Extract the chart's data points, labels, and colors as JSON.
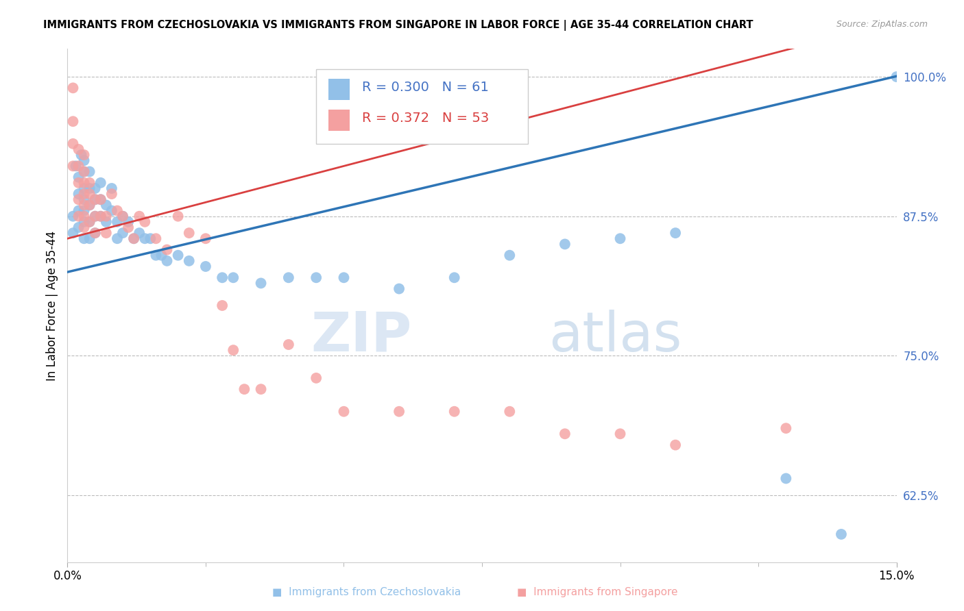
{
  "title": "IMMIGRANTS FROM CZECHOSLOVAKIA VS IMMIGRANTS FROM SINGAPORE IN LABOR FORCE | AGE 35-44 CORRELATION CHART",
  "source": "Source: ZipAtlas.com",
  "ylabel": "In Labor Force | Age 35-44",
  "yticks": [
    0.625,
    0.75,
    0.875,
    1.0
  ],
  "ytick_labels": [
    "62.5%",
    "75.0%",
    "87.5%",
    "100.0%"
  ],
  "xmin": 0.0,
  "xmax": 0.15,
  "ymin": 0.565,
  "ymax": 1.025,
  "blue_color": "#92C0E8",
  "pink_color": "#F4A0A0",
  "blue_line_color": "#2E75B6",
  "pink_line_color": "#D94040",
  "legend_blue_r": "R = 0.300",
  "legend_blue_n": "N = 61",
  "legend_pink_r": "R = 0.372",
  "legend_pink_n": "N = 53",
  "watermark_zip": "ZIP",
  "watermark_atlas": "atlas",
  "blue_intercept": 0.825,
  "blue_slope": 1.17,
  "pink_intercept": 0.855,
  "pink_slope": 1.3,
  "blue_x": [
    0.001,
    0.001,
    0.0015,
    0.002,
    0.002,
    0.002,
    0.002,
    0.0025,
    0.003,
    0.003,
    0.003,
    0.003,
    0.003,
    0.003,
    0.003,
    0.004,
    0.004,
    0.004,
    0.004,
    0.004,
    0.005,
    0.005,
    0.005,
    0.005,
    0.006,
    0.006,
    0.006,
    0.007,
    0.007,
    0.008,
    0.008,
    0.009,
    0.009,
    0.01,
    0.01,
    0.011,
    0.012,
    0.013,
    0.014,
    0.015,
    0.016,
    0.017,
    0.018,
    0.02,
    0.022,
    0.025,
    0.028,
    0.03,
    0.035,
    0.04,
    0.045,
    0.05,
    0.06,
    0.07,
    0.08,
    0.09,
    0.1,
    0.11,
    0.13,
    0.14,
    0.15
  ],
  "blue_y": [
    0.875,
    0.86,
    0.92,
    0.91,
    0.895,
    0.88,
    0.865,
    0.93,
    0.925,
    0.915,
    0.9,
    0.89,
    0.88,
    0.87,
    0.855,
    0.915,
    0.9,
    0.885,
    0.87,
    0.855,
    0.9,
    0.89,
    0.875,
    0.86,
    0.905,
    0.89,
    0.875,
    0.885,
    0.87,
    0.9,
    0.88,
    0.87,
    0.855,
    0.875,
    0.86,
    0.87,
    0.855,
    0.86,
    0.855,
    0.855,
    0.84,
    0.84,
    0.835,
    0.84,
    0.835,
    0.83,
    0.82,
    0.82,
    0.815,
    0.82,
    0.82,
    0.82,
    0.81,
    0.82,
    0.84,
    0.85,
    0.855,
    0.86,
    0.64,
    0.59,
    1.0
  ],
  "pink_x": [
    0.001,
    0.001,
    0.001,
    0.001,
    0.002,
    0.002,
    0.002,
    0.002,
    0.002,
    0.003,
    0.003,
    0.003,
    0.003,
    0.003,
    0.003,
    0.003,
    0.004,
    0.004,
    0.004,
    0.004,
    0.005,
    0.005,
    0.005,
    0.006,
    0.006,
    0.007,
    0.007,
    0.008,
    0.009,
    0.01,
    0.011,
    0.012,
    0.013,
    0.014,
    0.016,
    0.018,
    0.02,
    0.022,
    0.025,
    0.028,
    0.03,
    0.032,
    0.035,
    0.04,
    0.045,
    0.05,
    0.06,
    0.07,
    0.08,
    0.09,
    0.1,
    0.11,
    0.13
  ],
  "pink_y": [
    0.99,
    0.96,
    0.94,
    0.92,
    0.935,
    0.92,
    0.905,
    0.89,
    0.875,
    0.93,
    0.915,
    0.905,
    0.895,
    0.885,
    0.875,
    0.865,
    0.905,
    0.895,
    0.885,
    0.87,
    0.89,
    0.875,
    0.86,
    0.89,
    0.875,
    0.875,
    0.86,
    0.895,
    0.88,
    0.875,
    0.865,
    0.855,
    0.875,
    0.87,
    0.855,
    0.845,
    0.875,
    0.86,
    0.855,
    0.795,
    0.755,
    0.72,
    0.72,
    0.76,
    0.73,
    0.7,
    0.7,
    0.7,
    0.7,
    0.68,
    0.68,
    0.67,
    0.685
  ]
}
